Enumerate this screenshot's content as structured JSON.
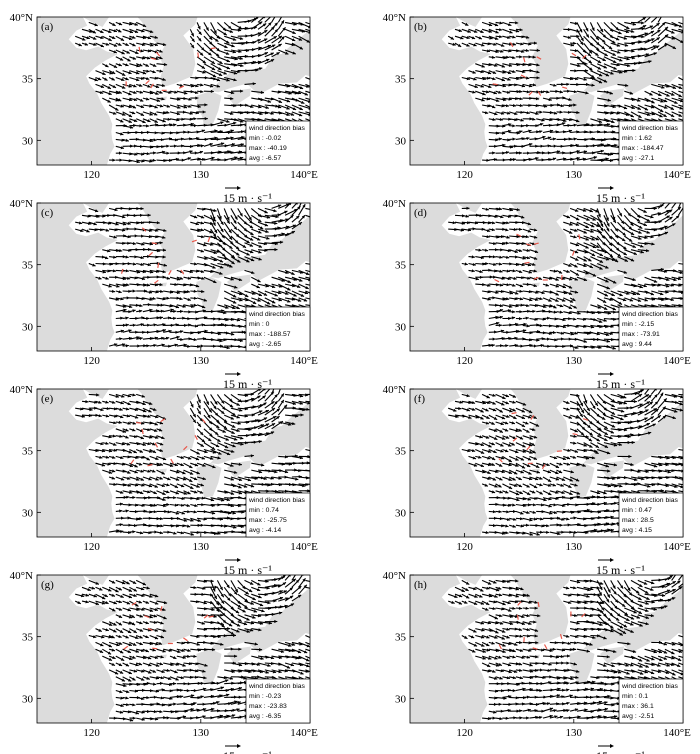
{
  "colors": {
    "land": "#dcdcdc",
    "sea": "#ffffff",
    "vector": "#000000",
    "bias": "#e8574a",
    "frame": "#000000"
  },
  "axis": {
    "x_ticks": [
      "120",
      "130",
      "140°E"
    ],
    "y_ticks": [
      "40°N",
      "35",
      "30"
    ],
    "lon_range": [
      115,
      140
    ],
    "lat_range": [
      28,
      40
    ]
  },
  "reference_vector": {
    "label": "15  m · s⁻¹",
    "speed": 15
  },
  "panels": [
    {
      "id": "a",
      "label": "(a)",
      "legend": {
        "title": "wind direction bias",
        "min": "min :  -0.02",
        "max": "max :  -40.19",
        "avg": "avg :  -6.57"
      }
    },
    {
      "id": "b",
      "label": "(b)",
      "legend": {
        "title": "wind direction bias",
        "min": "min :  1.62",
        "max": "max :  -184.47",
        "avg": "avg :  -27.1"
      }
    },
    {
      "id": "c",
      "label": "(c)",
      "legend": {
        "title": "wind direction bias",
        "min": "min :  0",
        "max": "max :  -188.57",
        "avg": "avg :  -2.65"
      }
    },
    {
      "id": "d",
      "label": "(d)",
      "legend": {
        "title": "wind direction bias",
        "min": "min :  -2.15",
        "max": "max :  -73.91",
        "avg": "avg :  9.44"
      }
    },
    {
      "id": "e",
      "label": "(e)",
      "legend": {
        "title": "wind direction bias",
        "min": "min :  0.74",
        "max": "max :  -25.75",
        "avg": "avg :  -4.14"
      }
    },
    {
      "id": "f",
      "label": "(f)",
      "legend": {
        "title": "wind direction bias",
        "min": "min :  0.47",
        "max": "max :  28.5",
        "avg": "avg :  4.15"
      }
    },
    {
      "id": "g",
      "label": "(g)",
      "legend": {
        "title": "wind direction bias",
        "min": "min :  -0.23",
        "max": "max :  -23.83",
        "avg": "avg :  -6.35"
      }
    },
    {
      "id": "h",
      "label": "(h)",
      "legend": {
        "title": "wind direction bias",
        "min": "min :  0.1",
        "max": "max :  36.1",
        "avg": "avg :  -2.51"
      }
    }
  ]
}
